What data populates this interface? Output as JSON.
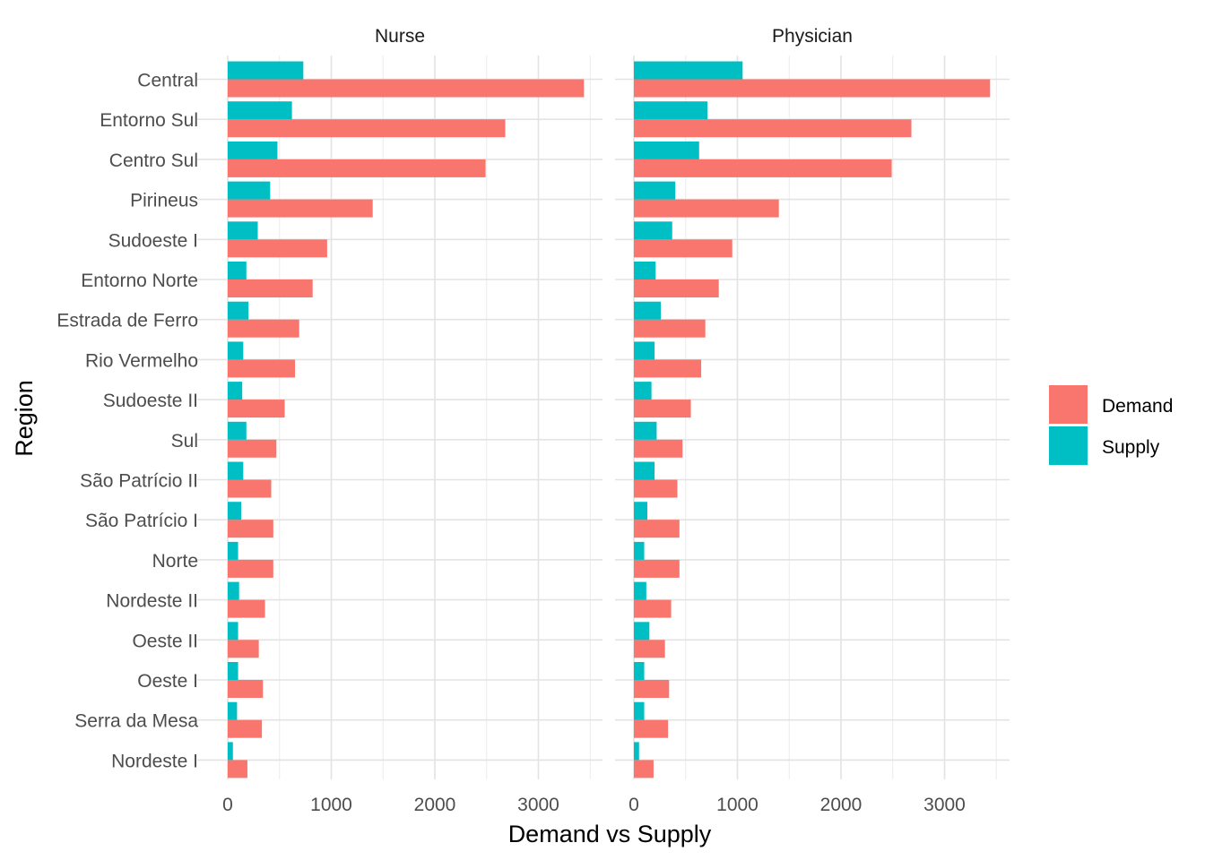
{
  "chart_data": {
    "type": "bar",
    "orientation": "horizontal",
    "xlabel": "Demand vs Supply",
    "ylabel": "Region",
    "xlim": [
      0,
      3600
    ],
    "x_ticks": [
      0,
      1000,
      2000,
      3000
    ],
    "grid": true,
    "legend": {
      "position": "right",
      "entries": [
        {
          "name": "Demand",
          "color": "#F8766D"
        },
        {
          "name": "Supply",
          "color": "#00BFC4"
        }
      ]
    },
    "categories": [
      "Central",
      "Entorno Sul",
      "Centro Sul",
      "Pirineus",
      "Sudoeste I",
      "Entorno Norte",
      "Estrada de Ferro",
      "Rio Vermelho",
      "Sudoeste II",
      "Sul",
      "São Patrício II",
      "São Patrício I",
      "Norte",
      "Nordeste II",
      "Oeste II",
      "Oeste I",
      "Serra da Mesa",
      "Nordeste I"
    ],
    "panels": [
      {
        "title": "Nurse",
        "series": [
          {
            "name": "Demand",
            "values": [
              3440,
              2680,
              2490,
              1400,
              960,
              820,
              690,
              650,
              550,
              470,
              420,
              440,
              440,
              360,
              300,
              340,
              330,
              190
            ]
          },
          {
            "name": "Supply",
            "values": [
              730,
              620,
              480,
              410,
              290,
              180,
              200,
              150,
              140,
              180,
              150,
              130,
              100,
              110,
              100,
              100,
              90,
              50
            ]
          }
        ]
      },
      {
        "title": "Physician",
        "series": [
          {
            "name": "Demand",
            "values": [
              3440,
              2680,
              2490,
              1400,
              950,
              820,
              690,
              650,
              550,
              470,
              420,
              440,
              440,
              360,
              300,
              340,
              330,
              190
            ]
          },
          {
            "name": "Supply",
            "values": [
              1050,
              710,
              630,
              400,
              370,
              210,
              260,
              200,
              170,
              220,
              200,
              130,
              100,
              120,
              150,
              100,
              100,
              50
            ]
          }
        ]
      }
    ]
  }
}
